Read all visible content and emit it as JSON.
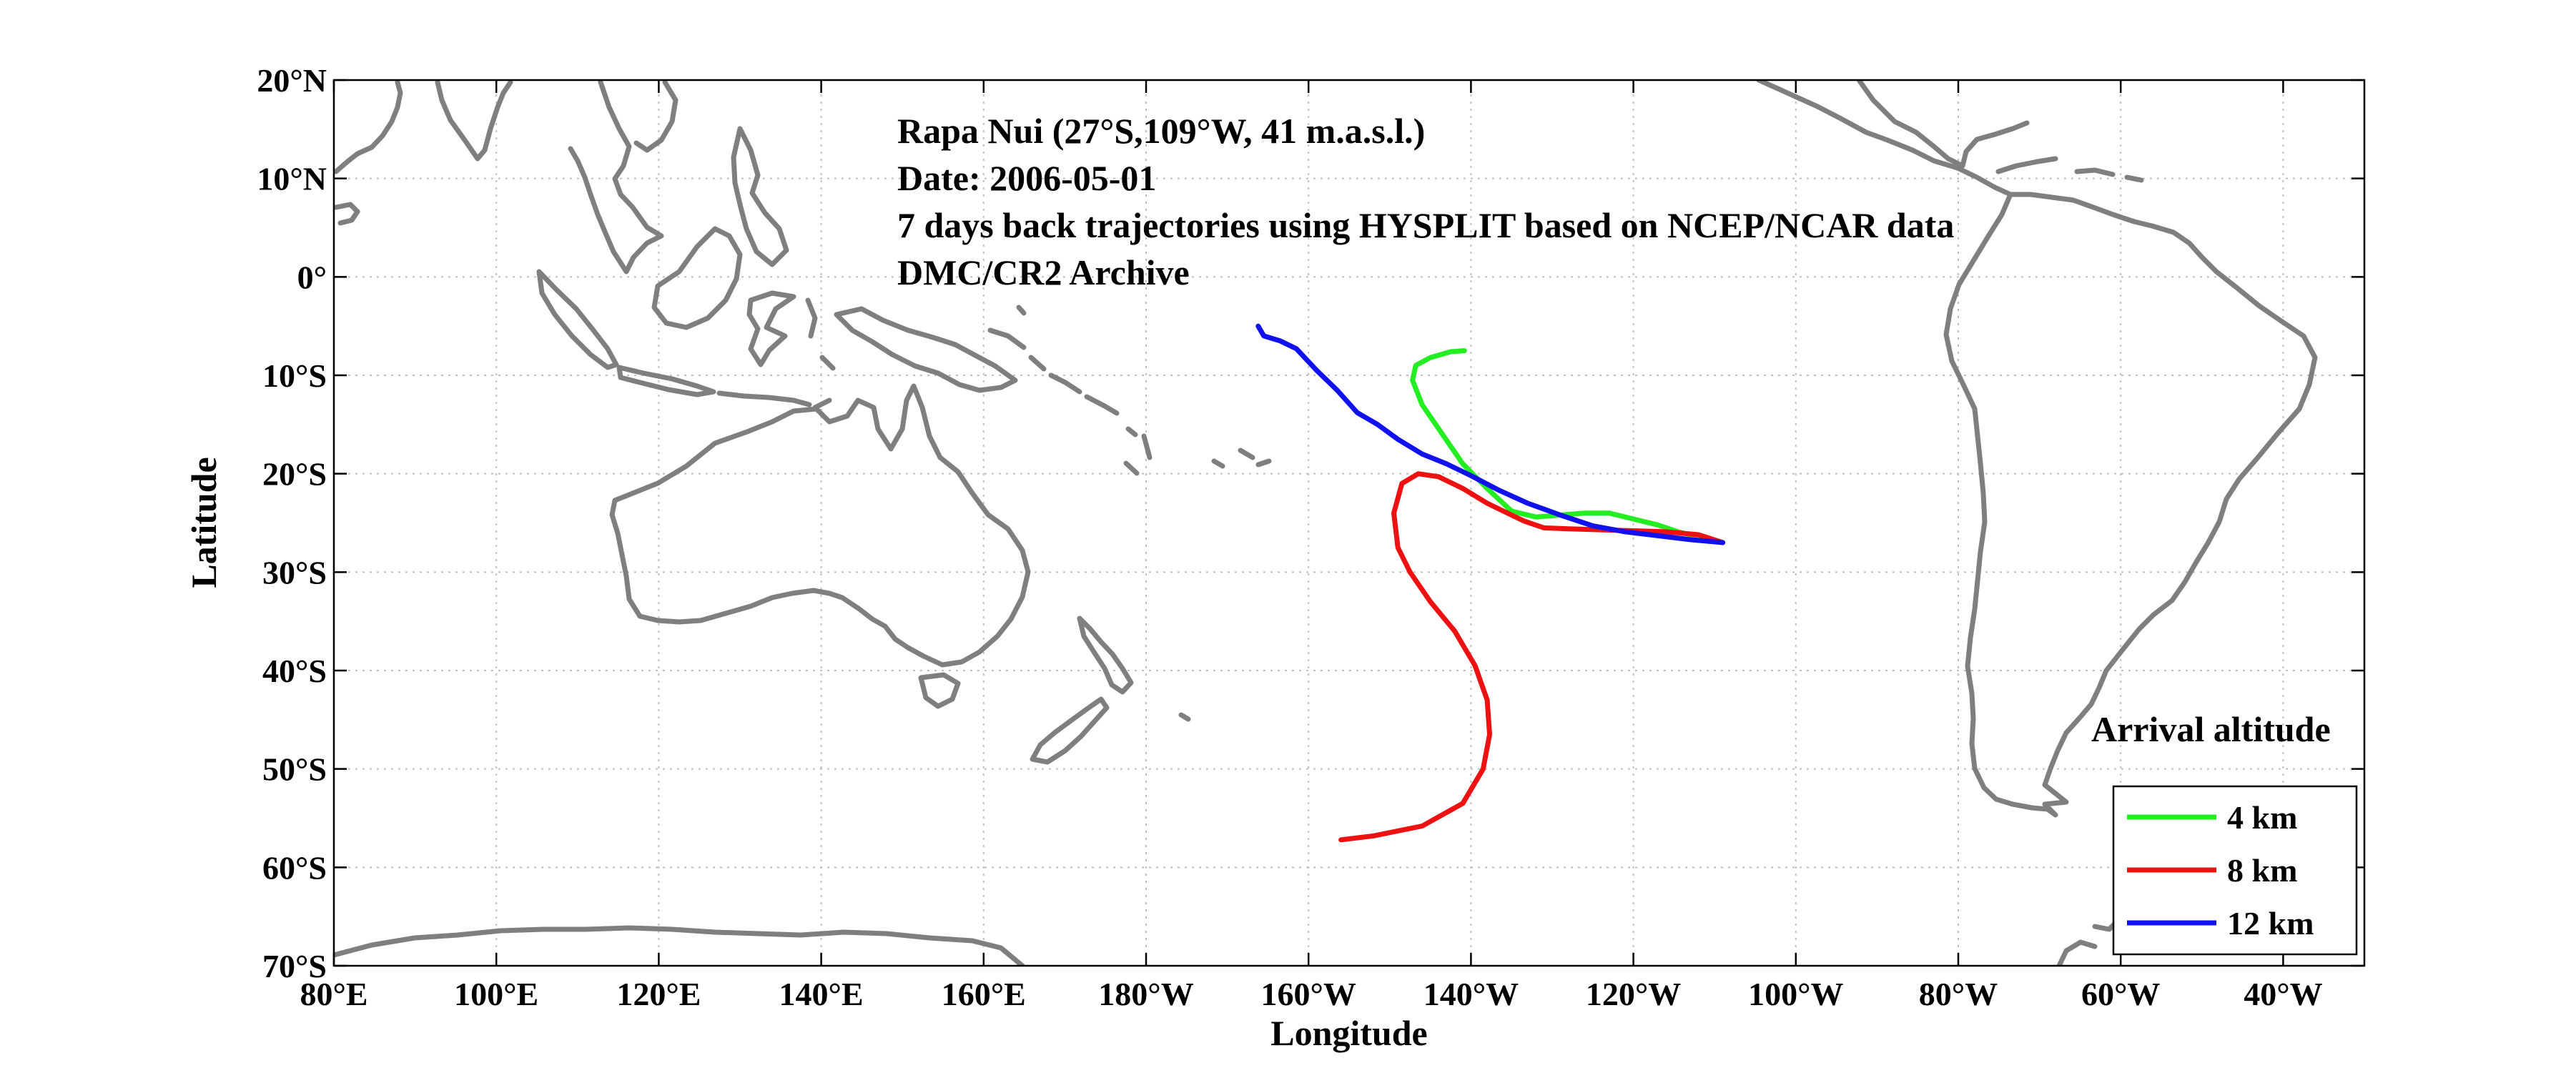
{
  "figure": {
    "xlabel": "Longitude",
    "ylabel": "Latitude",
    "annotation_lines": [
      "Rapa Nui (27°S,109°W, 41 m.a.s.l.)",
      "Date: 2006-05-01",
      "7 days back trajectories using HYSPLIT based on NCEP/NCAR data",
      "DMC/CR2 Archive"
    ],
    "x_ticks": [
      {
        "lon": 80,
        "label": "80°E"
      },
      {
        "lon": 100,
        "label": "100°E"
      },
      {
        "lon": 120,
        "label": "120°E"
      },
      {
        "lon": 140,
        "label": "140°E"
      },
      {
        "lon": 160,
        "label": "160°E"
      },
      {
        "lon": 180,
        "label": "180°W"
      },
      {
        "lon": 200,
        "label": "160°W"
      },
      {
        "lon": 220,
        "label": "140°W"
      },
      {
        "lon": 240,
        "label": "120°W"
      },
      {
        "lon": 260,
        "label": "100°W"
      },
      {
        "lon": 280,
        "label": "80°W"
      },
      {
        "lon": 300,
        "label": "60°W"
      },
      {
        "lon": 320,
        "label": "40°W"
      }
    ],
    "y_ticks": [
      {
        "lat": 20,
        "label": "20°N"
      },
      {
        "lat": 10,
        "label": "10°N"
      },
      {
        "lat": 0,
        "label": "0°"
      },
      {
        "lat": -10,
        "label": "10°S"
      },
      {
        "lat": -20,
        "label": "20°S"
      },
      {
        "lat": -30,
        "label": "30°S"
      },
      {
        "lat": -40,
        "label": "40°S"
      },
      {
        "lat": -50,
        "label": "50°S"
      },
      {
        "lat": -60,
        "label": "60°S"
      },
      {
        "lat": -70,
        "label": "70°S"
      }
    ],
    "legend": {
      "title": "Arrival altitude",
      "location": "bottom-right",
      "entries": [
        {
          "label": "4 km",
          "color": "#22ee22"
        },
        {
          "label": "8 km",
          "color": "#ee1111"
        },
        {
          "label": "12 km",
          "color": "#1111ee"
        }
      ]
    },
    "coast_color": "#7f7f7f",
    "grid_color": "#bfbfbf"
  },
  "chart_data": {
    "type": "map",
    "projection": "equirectangular (longitude 0–360°)",
    "xlim": [
      80,
      330
    ],
    "ylim": [
      -70,
      20
    ],
    "grid": true,
    "series": [
      {
        "name": "4 km",
        "color": "#22ee22",
        "points": [
          [
            251.0,
            -27.0
          ],
          [
            248.5,
            -26.5
          ],
          [
            245.5,
            -25.9
          ],
          [
            243.0,
            -25.2
          ],
          [
            240.0,
            -24.6
          ],
          [
            237.0,
            -24.0
          ],
          [
            234.0,
            -24.0
          ],
          [
            231.0,
            -24.2
          ],
          [
            228.0,
            -24.4
          ],
          [
            225.0,
            -23.8
          ],
          [
            222.0,
            -21.5
          ],
          [
            219.0,
            -19.0
          ],
          [
            216.5,
            -16.0
          ],
          [
            214.0,
            -13.0
          ],
          [
            212.8,
            -10.5
          ],
          [
            213.2,
            -9.0
          ],
          [
            215.0,
            -8.2
          ],
          [
            217.5,
            -7.6
          ],
          [
            219.2,
            -7.5
          ]
        ]
      },
      {
        "name": "8 km",
        "color": "#ee1111",
        "points": [
          [
            251.0,
            -27.0
          ],
          [
            248.0,
            -26.2
          ],
          [
            244.0,
            -25.9
          ],
          [
            240.0,
            -25.8
          ],
          [
            236.0,
            -25.7
          ],
          [
            232.0,
            -25.6
          ],
          [
            229.0,
            -25.5
          ],
          [
            226.5,
            -24.8
          ],
          [
            224.0,
            -23.8
          ],
          [
            222.0,
            -23.0
          ],
          [
            219.0,
            -21.5
          ],
          [
            216.0,
            -20.3
          ],
          [
            213.5,
            -20.0
          ],
          [
            211.5,
            -21.0
          ],
          [
            210.5,
            -24.0
          ],
          [
            211.0,
            -27.5
          ],
          [
            212.5,
            -30.0
          ],
          [
            215.0,
            -33.0
          ],
          [
            218.0,
            -36.0
          ],
          [
            220.5,
            -39.5
          ],
          [
            222.0,
            -43.0
          ],
          [
            222.3,
            -46.5
          ],
          [
            221.5,
            -50.0
          ],
          [
            219.0,
            -53.5
          ],
          [
            214.0,
            -55.8
          ],
          [
            208.0,
            -56.8
          ],
          [
            204.0,
            -57.2
          ]
        ]
      },
      {
        "name": "12 km",
        "color": "#1111ee",
        "points": [
          [
            251.0,
            -27.0
          ],
          [
            247.0,
            -26.7
          ],
          [
            243.0,
            -26.3
          ],
          [
            239.0,
            -25.9
          ],
          [
            235.0,
            -25.3
          ],
          [
            231.0,
            -24.2
          ],
          [
            227.0,
            -23.0
          ],
          [
            223.5,
            -21.7
          ],
          [
            220.0,
            -20.2
          ],
          [
            217.0,
            -19.0
          ],
          [
            214.0,
            -18.0
          ],
          [
            211.0,
            -16.5
          ],
          [
            208.5,
            -15.0
          ],
          [
            206.0,
            -13.8
          ],
          [
            203.5,
            -11.5
          ],
          [
            201.0,
            -9.5
          ],
          [
            198.5,
            -7.3
          ],
          [
            196.5,
            -6.5
          ],
          [
            194.5,
            -6.0
          ],
          [
            193.8,
            -5.0
          ]
        ]
      }
    ]
  }
}
